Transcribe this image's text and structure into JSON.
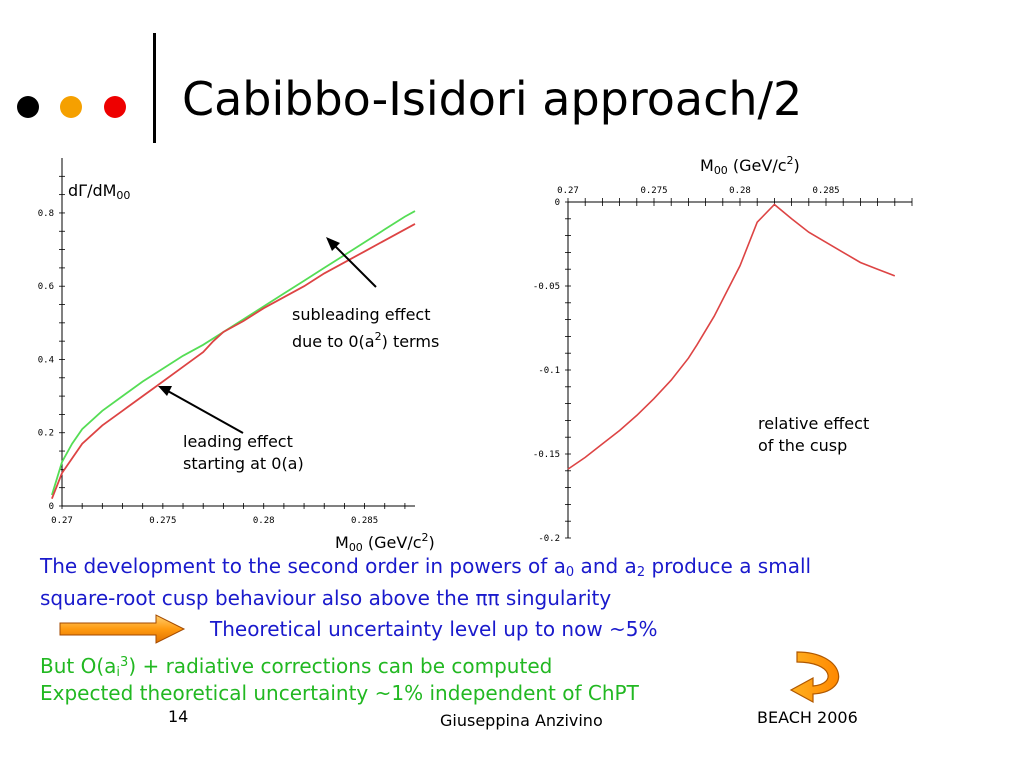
{
  "header": {
    "title": "Cabibbo-Isidori approach/2",
    "dots": [
      "#000000",
      "#f5a000",
      "#ee0000"
    ]
  },
  "chart_data": [
    {
      "type": "line",
      "title": "",
      "ylabel": "dΓ/dM00",
      "xlabel": "M00 (GeV/c2)",
      "xlim": [
        0.27,
        0.2875
      ],
      "ylim": [
        0,
        0.95
      ],
      "xticks": [
        "0.27",
        "0.275",
        "0.28",
        "0.285"
      ],
      "yticks": [
        "0",
        "0.2",
        "0.4",
        "0.6",
        "0.8"
      ],
      "series": [
        {
          "color": "#55dd55",
          "x": [
            0.2695,
            0.27,
            0.2705,
            0.271,
            0.272,
            0.273,
            0.274,
            0.275,
            0.276,
            0.277,
            0.278,
            0.279,
            0.28,
            0.281,
            0.282,
            0.283,
            0.284,
            0.285,
            0.286,
            0.287,
            0.2875
          ],
          "y": [
            0.03,
            0.12,
            0.17,
            0.21,
            0.26,
            0.3,
            0.34,
            0.375,
            0.41,
            0.44,
            0.475,
            0.51,
            0.545,
            0.58,
            0.615,
            0.65,
            0.685,
            0.72,
            0.755,
            0.79,
            0.805
          ]
        },
        {
          "color": "#dd4444",
          "x": [
            0.2695,
            0.27,
            0.2705,
            0.271,
            0.272,
            0.273,
            0.274,
            0.275,
            0.276,
            0.277,
            0.2775,
            0.278,
            0.279,
            0.28,
            0.281,
            0.282,
            0.283,
            0.284,
            0.285,
            0.286,
            0.287,
            0.2875
          ],
          "y": [
            0.02,
            0.09,
            0.13,
            0.17,
            0.22,
            0.26,
            0.3,
            0.34,
            0.38,
            0.42,
            0.45,
            0.475,
            0.505,
            0.54,
            0.57,
            0.6,
            0.635,
            0.665,
            0.695,
            0.725,
            0.755,
            0.77
          ]
        }
      ],
      "annotations": [
        {
          "text": [
            "subleading effect",
            "due to 0(a2) terms"
          ]
        },
        {
          "text": [
            "leading effect",
            "starting at 0(a)"
          ]
        }
      ]
    },
    {
      "type": "line",
      "title": "",
      "ylabel": "",
      "xlabel": "M00 (GeV/c2)",
      "xlim": [
        0.27,
        0.29
      ],
      "ylim": [
        -0.2,
        0
      ],
      "xticks": [
        "0.27",
        "0.275",
        "0.28",
        "0.285"
      ],
      "yticks": [
        "0",
        "-0.05",
        "-0.1",
        "-0.15",
        "-0.2"
      ],
      "series": [
        {
          "color": "#dd4444",
          "x": [
            0.27,
            0.271,
            0.272,
            0.273,
            0.274,
            0.275,
            0.276,
            0.277,
            0.2775,
            0.2785,
            0.279,
            0.28,
            0.281,
            0.282,
            0.283,
            0.284,
            0.285,
            0.286,
            0.287,
            0.288,
            0.289
          ],
          "y": [
            -0.159,
            -0.152,
            -0.144,
            -0.136,
            -0.127,
            -0.117,
            -0.106,
            -0.093,
            -0.085,
            -0.068,
            -0.058,
            -0.038,
            -0.012,
            -0.0015,
            -0.01,
            -0.018,
            -0.024,
            -0.03,
            -0.036,
            -0.04,
            -0.044
          ]
        }
      ],
      "annotations": [
        {
          "text": [
            "relative effect",
            "of the cusp"
          ]
        }
      ]
    }
  ],
  "labels": {
    "left_ylabel": {
      "main": "dΓ/dM",
      "sub": "00"
    },
    "left_xlabel": {
      "pre": "M",
      "sub": "00",
      "mid": " (GeV/c",
      "sup": "2",
      "post": ")"
    },
    "right_xlabel": {
      "pre": "M",
      "sub": "00",
      "mid": " (GeV/c",
      "sup": "2",
      "post": ")"
    },
    "subleading": {
      "line1": "subleading effect",
      "line2_pre": "due to 0(a",
      "line2_sup": "2",
      "line2_post": ") terms"
    },
    "leading": {
      "line1": "leading effect",
      "line2": "starting at 0(a)"
    },
    "relative": {
      "line1": "relative effect",
      "line2": "of the cusp"
    }
  },
  "body": {
    "line1_pre": "The development to the second order in powers of a",
    "line1_sub1": "0",
    "line1_mid": " and a",
    "line1_sub2": "2",
    "line1_post": " produce a small",
    "line2": "square-root cusp behaviour also above the ππ singularity",
    "line3": "Theoretical uncertainty level up to now ~5%",
    "line4_pre": "But O(a",
    "line4_sub": "i",
    "line4_sup": "3",
    "line4_post": ") + radiative corrections can be computed",
    "line5": "Expected theoretical uncertainty ~1% independent of ChPT"
  },
  "footer": {
    "page": "14",
    "author": "Giuseppina Anzivino",
    "event": "BEACH 2006"
  }
}
